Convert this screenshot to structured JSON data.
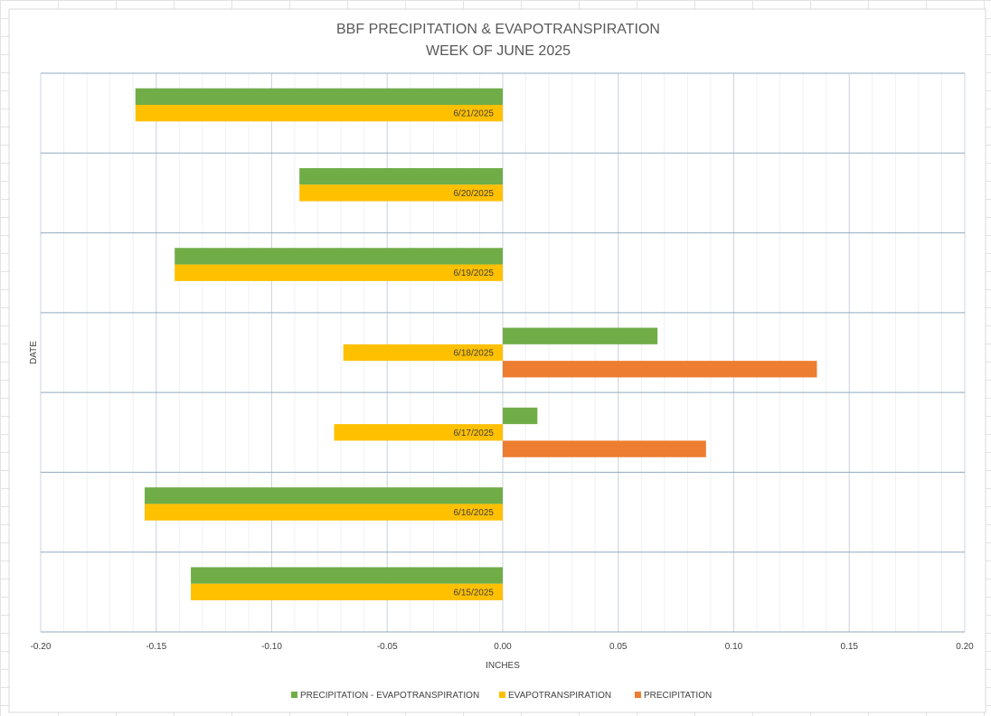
{
  "chart_data": {
    "type": "bar",
    "orientation": "horizontal",
    "title": "BBF PRECIPITATION & EVAPOTRANSPIRATION",
    "subtitle": "WEEK OF JUNE 2025",
    "xlabel": "INCHES",
    "ylabel": "DATE",
    "xlim": [
      -0.2,
      0.2
    ],
    "x_ticks": [
      "-0.20",
      "-0.15",
      "-0.10",
      "-0.05",
      "0.00",
      "0.05",
      "0.10",
      "0.15",
      "0.20"
    ],
    "x_tick_values": [
      -0.2,
      -0.15,
      -0.1,
      -0.05,
      0,
      0.05,
      0.1,
      0.15,
      0.2
    ],
    "grid": true,
    "legend_position": "bottom",
    "categories": [
      "6/21/2025",
      "6/20/2025",
      "6/19/2025",
      "6/18/2025",
      "6/17/2025",
      "6/16/2025",
      "6/15/2025"
    ],
    "series": [
      {
        "name": "PRECIPITATION - EVAPOTRANSPIRATION",
        "color": "#70AD47",
        "values": [
          -0.159,
          -0.088,
          -0.142,
          0.067,
          0.015,
          -0.155,
          -0.135
        ]
      },
      {
        "name": "EVAPOTRANSPIRATION",
        "color": "#FFC000",
        "values": [
          -0.159,
          -0.088,
          -0.142,
          -0.069,
          -0.073,
          -0.155,
          -0.135
        ]
      },
      {
        "name": "PRECIPITATION",
        "color": "#ED7D31",
        "values": [
          0,
          0,
          0,
          0.136,
          0.088,
          0,
          0
        ]
      }
    ]
  }
}
